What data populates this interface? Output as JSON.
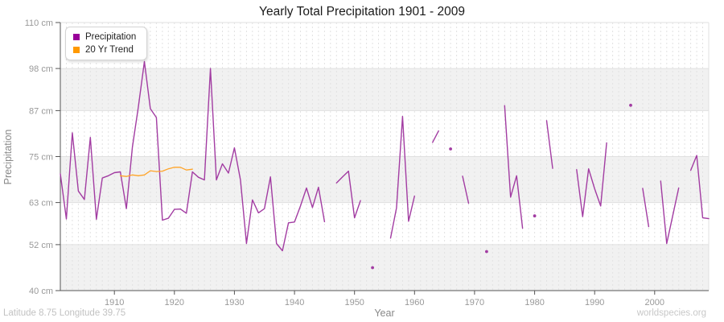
{
  "chart_data": {
    "type": "line",
    "title": "Yearly Total Precipitation 1901 - 2009",
    "xlabel": "Year",
    "ylabel": "Precipitation",
    "footer_left": "Latitude 8.75 Longitude 39.75",
    "footer_right": "worldspecies.org",
    "xlim": [
      1901,
      2009
    ],
    "ylim": [
      40,
      110
    ],
    "y_ticks": [
      {
        "value": 110,
        "label": "110 cm"
      },
      {
        "value": 98,
        "label": "98 cm"
      },
      {
        "value": 87,
        "label": "87 cm"
      },
      {
        "value": 75,
        "label": "75 cm"
      },
      {
        "value": 63,
        "label": "63 cm"
      },
      {
        "value": 52,
        "label": "52 cm"
      },
      {
        "value": 40,
        "label": "40 cm"
      }
    ],
    "x_ticks": [
      1910,
      1920,
      1930,
      1940,
      1950,
      1960,
      1970,
      1980,
      1990,
      2000
    ],
    "shaded_bands": [
      [
        98,
        87
      ],
      [
        75,
        63
      ],
      [
        52,
        40
      ]
    ],
    "grid": {
      "horizontal": "solid",
      "vertical": "dashed-every-year"
    },
    "legend_position": "top-left",
    "series": [
      {
        "name": "Precipitation",
        "color": "#A23CA2",
        "marker_color": "#990099",
        "start_year": 1901,
        "values": [
          70.5,
          58.7,
          81.2,
          66,
          63.8,
          80,
          58.6,
          69.4,
          70,
          70.8,
          71,
          61.4,
          77.5,
          88,
          99.8,
          87.5,
          85.2,
          58.4,
          58.9,
          61.2,
          61.3,
          60.2,
          71,
          69.6,
          68.9,
          98,
          68.9,
          73.1,
          70.7,
          77.3,
          68.9,
          52.3,
          63.7,
          60.3,
          61.4,
          69.7,
          52.3,
          50.4,
          57.7,
          57.9,
          62.1,
          66.8,
          61.7,
          67,
          58,
          null,
          68.1,
          69.7,
          71.2,
          59,
          63.5,
          null,
          46,
          null,
          null,
          53.7,
          61.6,
          85.5,
          58.1,
          64.7,
          null,
          null,
          78.7,
          81.7,
          null,
          77,
          null,
          69.9,
          62.8,
          null,
          null,
          50.2,
          null,
          null,
          88.3,
          64.4,
          70,
          56.3,
          null,
          59.5,
          null,
          84.4,
          71.9,
          null,
          null,
          null,
          71.6,
          59.3,
          71.8,
          66.6,
          62.1,
          78.6,
          null,
          null,
          null,
          88.4,
          null,
          66.7,
          56.7,
          null,
          68.6,
          52.3,
          59.5,
          66.8,
          null,
          71.4,
          75.3,
          59,
          58.8
        ]
      },
      {
        "name": "20 Yr Trend",
        "color": "#FFA428",
        "marker_color": "#FF9900",
        "start_year": 1911,
        "values": [
          70,
          69.8,
          70.2,
          70,
          70.2,
          71.3,
          71.1,
          71.2,
          71.8,
          72.2,
          72.2,
          71.5,
          71.7
        ]
      }
    ]
  }
}
